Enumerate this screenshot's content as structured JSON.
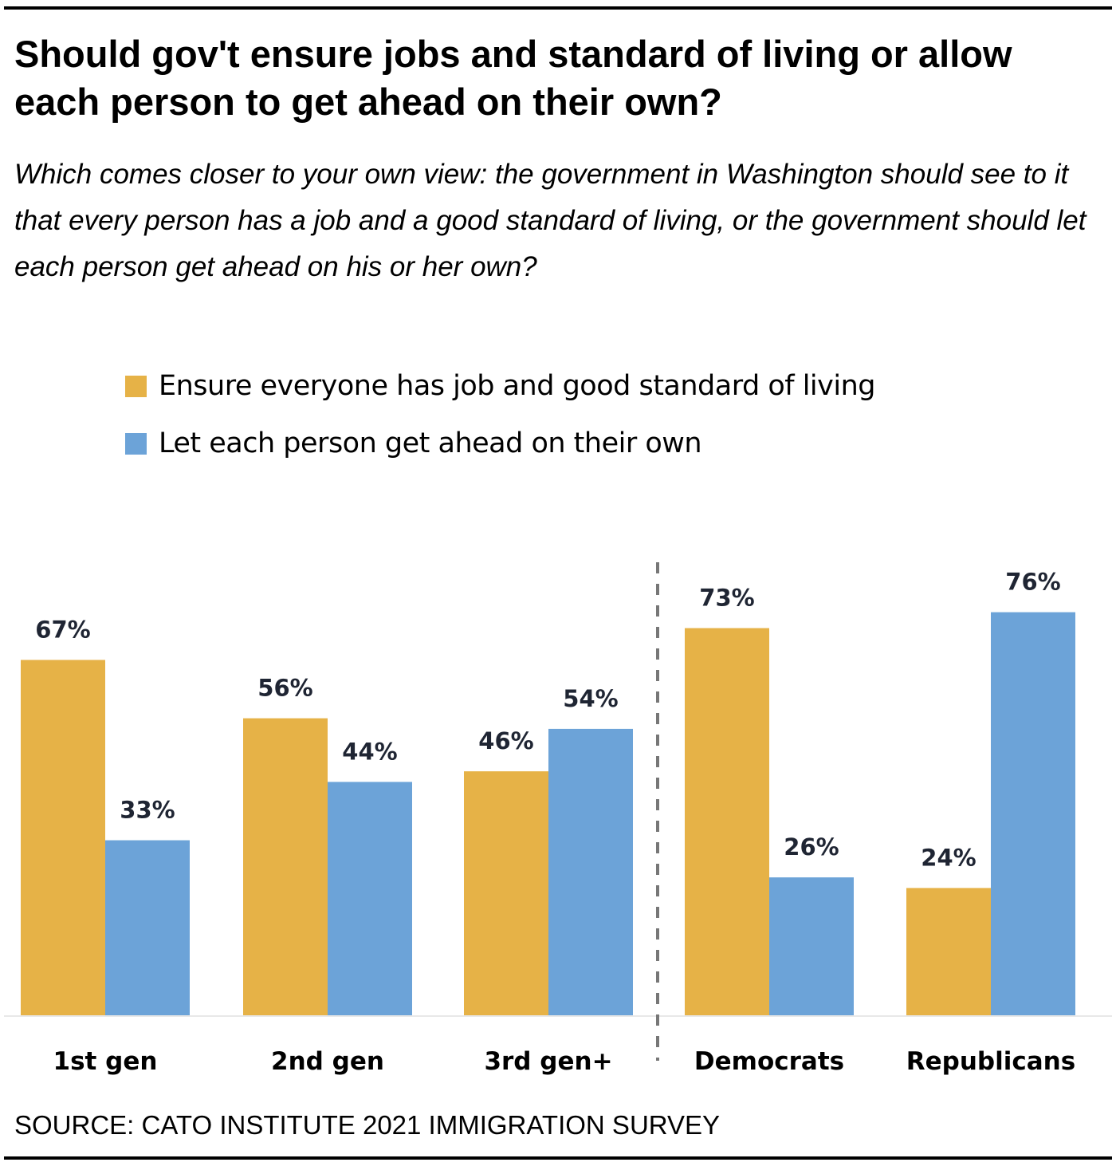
{
  "title": "Should gov't ensure jobs and standard of living or allow each person to get ahead on their own?",
  "subtitle": "Which comes closer to your own view: the government in Washington should see to it that every person has a job and a good standard of living, or the government should let each person get ahead on his or her own?",
  "source": "SOURCE: CATO INSTITUTE 2021 IMMIGRATION SURVEY",
  "colors": {
    "ensure": "#e6b247",
    "let": "#6ca3d8",
    "divider": "#777777",
    "baseline": "#e8e8e8"
  },
  "chart_data": {
    "type": "bar",
    "title": "Should gov't ensure jobs and standard of living or allow each person to get ahead on their own?",
    "xlabel": "",
    "ylabel": "",
    "ylim": [
      0,
      80
    ],
    "grid": false,
    "legend_position": "top-left",
    "categories": [
      "1st gen",
      "2nd gen",
      "3rd gen+",
      "Democrats",
      "Republicans"
    ],
    "series": [
      {
        "name": "Ensure everyone has job and good standard of living",
        "color": "#e6b247",
        "values": [
          67,
          56,
          46,
          73,
          24
        ],
        "labels": [
          "67%",
          "56%",
          "46%",
          "73%",
          "24%"
        ]
      },
      {
        "name": "Let each person get ahead on their own",
        "color": "#6ca3d8",
        "values": [
          33,
          44,
          54,
          26,
          76
        ],
        "labels": [
          "33%",
          "44%",
          "54%",
          "26%",
          "76%"
        ]
      }
    ],
    "annotations": [
      "dashed vertical divider between 3rd gen+ and Democrats"
    ]
  }
}
